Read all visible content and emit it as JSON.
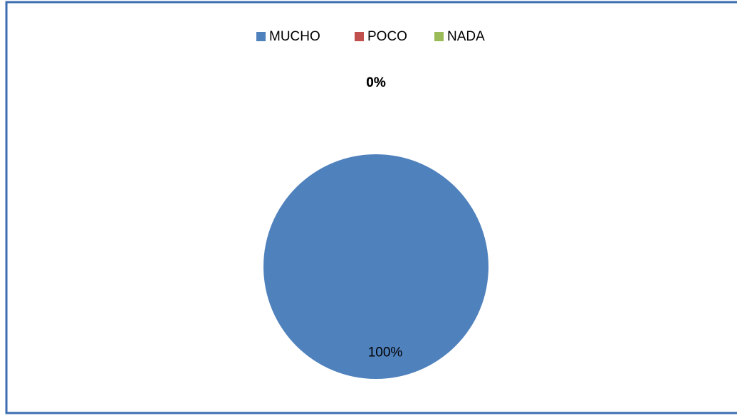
{
  "chart_data": {
    "type": "pie",
    "categories": [
      "MUCHO",
      "POCO",
      "NADA"
    ],
    "values": [
      100,
      0,
      0
    ],
    "value_labels": [
      "100%",
      "0%",
      "0%"
    ],
    "colors": [
      "#4f81bd",
      "#c0504d",
      "#9bbb59"
    ],
    "legend": "top"
  }
}
